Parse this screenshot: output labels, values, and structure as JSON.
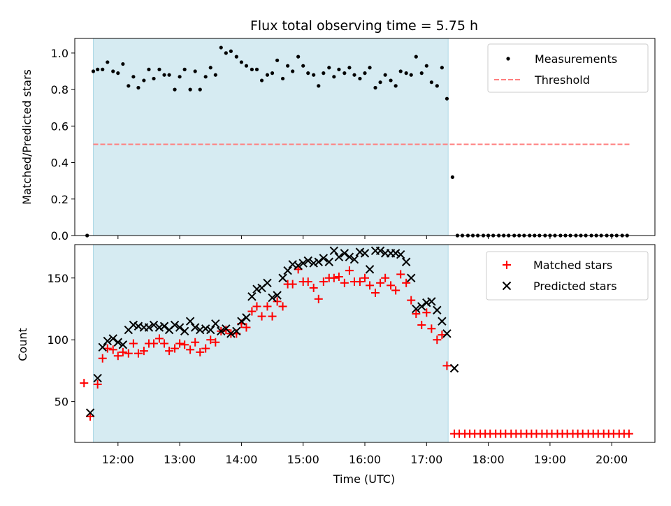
{
  "title": "Flux total observing time = 5.75 h",
  "colors": {
    "shade": "#add8e6",
    "measurement": "#000000",
    "threshold": "#ff7f7f",
    "matched": "#ff0000",
    "predicted": "#000000"
  },
  "chart_data": [
    {
      "type": "scatter",
      "panel": "top",
      "ylabel": "Matched/Predicted stars",
      "xlabel": "",
      "xlim": [
        11.3,
        20.7
      ],
      "ylim": [
        0,
        1.08
      ],
      "yticks": [
        {
          "v": 0.0,
          "label": "0.0"
        },
        {
          "v": 0.2,
          "label": "0.2"
        },
        {
          "v": 0.4,
          "label": "0.4"
        },
        {
          "v": 0.6,
          "label": "0.6"
        },
        {
          "v": 0.8,
          "label": "0.8"
        },
        {
          "v": 1.0,
          "label": "1.0"
        }
      ],
      "xticks": [
        12,
        13,
        14,
        15,
        16,
        17,
        18,
        19,
        20
      ],
      "shaded_span": [
        11.6,
        17.35
      ],
      "legend_position": "top-right",
      "legend": [
        "Measurements",
        "Threshold"
      ],
      "threshold": {
        "value": 0.5,
        "x_range": [
          11.6,
          20.3
        ]
      },
      "series": [
        {
          "name": "Measurements",
          "x": [
            11.5,
            11.6,
            11.67,
            11.75,
            11.83,
            11.92,
            12.0,
            12.08,
            12.17,
            12.25,
            12.33,
            12.42,
            12.5,
            12.58,
            12.67,
            12.75,
            12.83,
            12.92,
            13.0,
            13.08,
            13.17,
            13.25,
            13.33,
            13.42,
            13.5,
            13.58,
            13.67,
            13.75,
            13.83,
            13.92,
            14.0,
            14.08,
            14.17,
            14.25,
            14.33,
            14.42,
            14.5,
            14.58,
            14.67,
            14.75,
            14.83,
            14.92,
            15.0,
            15.08,
            15.17,
            15.25,
            15.33,
            15.42,
            15.5,
            15.58,
            15.67,
            15.75,
            15.83,
            15.92,
            16.0,
            16.08,
            16.17,
            16.25,
            16.33,
            16.42,
            16.5,
            16.58,
            16.67,
            16.75,
            16.83,
            16.92,
            17.0,
            17.08,
            17.17,
            17.25,
            17.33,
            17.42,
            17.5,
            17.58,
            17.67,
            17.75,
            17.83,
            17.92,
            18.0,
            18.08,
            18.17,
            18.25,
            18.33,
            18.42,
            18.5,
            18.58,
            18.67,
            18.75,
            18.83,
            18.92,
            19.0,
            19.08,
            19.17,
            19.25,
            19.33,
            19.42,
            19.5,
            19.58,
            19.67,
            19.75,
            19.83,
            19.92,
            20.0,
            20.08,
            20.17,
            20.25
          ],
          "y": [
            0.0,
            0.9,
            0.91,
            0.91,
            0.95,
            0.9,
            0.89,
            0.94,
            0.82,
            0.87,
            0.81,
            0.85,
            0.91,
            0.86,
            0.91,
            0.88,
            0.88,
            0.8,
            0.87,
            0.91,
            0.8,
            0.9,
            0.8,
            0.87,
            0.92,
            0.88,
            1.03,
            1.0,
            1.01,
            0.98,
            0.95,
            0.93,
            0.91,
            0.91,
            0.85,
            0.88,
            0.89,
            0.96,
            0.86,
            0.93,
            0.9,
            0.98,
            0.93,
            0.89,
            0.88,
            0.82,
            0.89,
            0.92,
            0.87,
            0.91,
            0.89,
            0.92,
            0.88,
            0.86,
            0.89,
            0.92,
            0.81,
            0.84,
            0.88,
            0.85,
            0.82,
            0.9,
            0.89,
            0.88,
            0.98,
            0.89,
            0.93,
            0.84,
            0.82,
            0.92,
            0.75,
            0.32,
            0.0,
            0.0,
            0.0,
            0.0,
            0.0,
            0.0,
            0.0,
            0.0,
            0.0,
            0.0,
            0.0,
            0.0,
            0.0,
            0.0,
            0.0,
            0.0,
            0.0,
            0.0,
            0.0,
            0.0,
            0.0,
            0.0,
            0.0,
            0.0,
            0.0,
            0.0,
            0.0,
            0.0,
            0.0,
            0.0,
            0.0,
            0.0,
            0.0,
            0.0
          ]
        }
      ]
    },
    {
      "type": "scatter",
      "panel": "bottom",
      "ylabel": "Count",
      "xlabel": "Time (UTC)",
      "xlim": [
        11.3,
        20.7
      ],
      "ylim": [
        17,
        177
      ],
      "yticks": [
        {
          "v": 50,
          "label": "50"
        },
        {
          "v": 100,
          "label": "100"
        },
        {
          "v": 150,
          "label": "150"
        }
      ],
      "xticks": [
        {
          "v": 12,
          "label": "12:00"
        },
        {
          "v": 13,
          "label": "13:00"
        },
        {
          "v": 14,
          "label": "14:00"
        },
        {
          "v": 15,
          "label": "15:00"
        },
        {
          "v": 16,
          "label": "16:00"
        },
        {
          "v": 17,
          "label": "17:00"
        },
        {
          "v": 18,
          "label": "18:00"
        },
        {
          "v": 19,
          "label": "19:00"
        },
        {
          "v": 20,
          "label": "20:00"
        }
      ],
      "shaded_span": [
        11.6,
        17.35
      ],
      "legend_position": "top-right",
      "legend": [
        "Matched stars",
        "Predicted stars"
      ],
      "series": [
        {
          "name": "Matched stars",
          "x": [
            11.45,
            11.55,
            11.67,
            11.75,
            11.83,
            11.92,
            12.0,
            12.08,
            12.17,
            12.25,
            12.33,
            12.42,
            12.5,
            12.58,
            12.67,
            12.75,
            12.83,
            12.92,
            13.0,
            13.08,
            13.17,
            13.25,
            13.33,
            13.42,
            13.5,
            13.58,
            13.67,
            13.75,
            13.83,
            13.92,
            14.0,
            14.08,
            14.17,
            14.25,
            14.33,
            14.42,
            14.5,
            14.58,
            14.67,
            14.75,
            14.83,
            14.92,
            15.0,
            15.08,
            15.17,
            15.25,
            15.33,
            15.42,
            15.5,
            15.58,
            15.67,
            15.75,
            15.83,
            15.92,
            16.0,
            16.08,
            16.17,
            16.25,
            16.33,
            16.42,
            16.5,
            16.58,
            16.67,
            16.75,
            16.83,
            16.92,
            17.0,
            17.08,
            17.17,
            17.25,
            17.33,
            17.45,
            17.53,
            17.62,
            17.7,
            17.78,
            17.87,
            17.95,
            18.03,
            18.12,
            18.2,
            18.28,
            18.37,
            18.45,
            18.53,
            18.62,
            18.7,
            18.78,
            18.87,
            18.95,
            19.03,
            19.12,
            19.2,
            19.28,
            19.37,
            19.45,
            19.53,
            19.62,
            19.7,
            19.78,
            19.87,
            19.95,
            20.03,
            20.12,
            20.2,
            20.28
          ],
          "y": [
            65,
            38,
            64,
            85,
            93,
            92,
            87,
            90,
            89,
            97,
            89,
            91,
            97,
            97,
            101,
            97,
            91,
            93,
            97,
            96,
            92,
            98,
            90,
            93,
            100,
            98,
            107,
            108,
            105,
            105,
            113,
            110,
            123,
            127,
            119,
            127,
            119,
            131,
            127,
            145,
            145,
            157,
            147,
            147,
            142,
            133,
            147,
            150,
            150,
            151,
            146,
            156,
            147,
            147,
            150,
            144,
            138,
            146,
            150,
            144,
            140,
            153,
            146,
            132,
            121,
            112,
            122,
            109,
            100,
            104,
            79,
            24,
            24,
            24,
            24,
            24,
            24,
            24,
            24,
            24,
            24,
            24,
            24,
            24,
            24,
            24,
            24,
            24,
            24,
            24,
            24,
            24,
            24,
            24,
            24,
            24,
            24,
            24,
            24,
            24,
            24,
            24,
            24,
            24,
            24,
            24
          ]
        },
        {
          "name": "Predicted stars",
          "x": [
            11.55,
            11.67,
            11.75,
            11.83,
            11.92,
            12.0,
            12.08,
            12.17,
            12.25,
            12.33,
            12.42,
            12.5,
            12.58,
            12.67,
            12.75,
            12.83,
            12.92,
            13.0,
            13.08,
            13.17,
            13.25,
            13.33,
            13.42,
            13.5,
            13.58,
            13.67,
            13.75,
            13.83,
            13.92,
            14.0,
            14.08,
            14.17,
            14.25,
            14.33,
            14.42,
            14.5,
            14.58,
            14.67,
            14.75,
            14.83,
            14.92,
            15.0,
            15.08,
            15.17,
            15.25,
            15.33,
            15.42,
            15.5,
            15.58,
            15.67,
            15.75,
            15.83,
            15.92,
            16.0,
            16.08,
            16.17,
            16.25,
            16.33,
            16.42,
            16.5,
            16.58,
            16.67,
            16.75,
            16.83,
            16.92,
            17.0,
            17.08,
            17.17,
            17.25,
            17.33,
            17.45
          ],
          "y": [
            41,
            69,
            94,
            99,
            101,
            98,
            96,
            108,
            112,
            111,
            110,
            110,
            112,
            110,
            111,
            108,
            112,
            110,
            107,
            115,
            110,
            108,
            109,
            108,
            113,
            107,
            109,
            105,
            107,
            115,
            118,
            135,
            141,
            142,
            146,
            134,
            136,
            150,
            156,
            161,
            160,
            162,
            164,
            162,
            163,
            166,
            163,
            172,
            167,
            170,
            167,
            165,
            171,
            170,
            157,
            172,
            172,
            170,
            170,
            170,
            169,
            163,
            150,
            125,
            127,
            130,
            131,
            124,
            115,
            105,
            77
          ]
        }
      ]
    }
  ]
}
